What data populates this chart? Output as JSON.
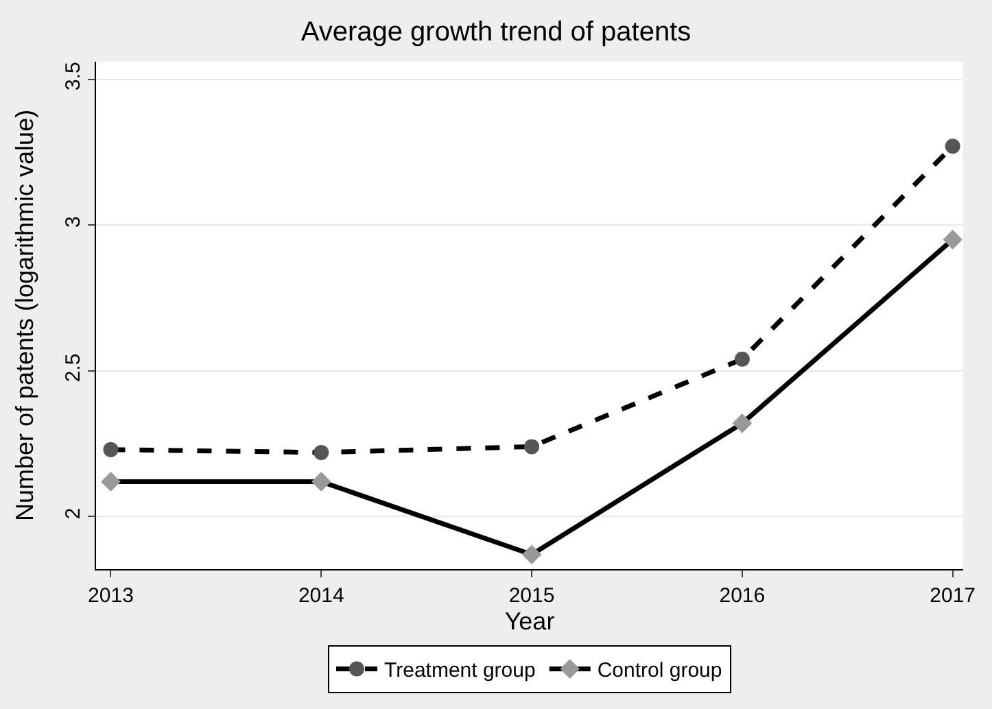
{
  "chart_data": {
    "type": "line",
    "title": "Average growth trend of patents",
    "xlabel": "Year",
    "ylabel": "Number of patents (logarithmic value)",
    "x": [
      2013,
      2014,
      2015,
      2016,
      2017
    ],
    "series": [
      {
        "name": "Treatment group",
        "color": "#000000",
        "colors": [
          "#555555",
          "#555555",
          "#555555",
          "#555555",
          "#555555"
        ],
        "marker": "circle",
        "line_style": "dashed",
        "values": [
          2.23,
          2.22,
          2.24,
          2.54,
          3.27
        ]
      },
      {
        "name": "Control group",
        "color": "#000000",
        "colors": [
          "#999999",
          "#999999",
          "#999999",
          "#999999",
          "#999999"
        ],
        "marker": "diamond",
        "line_style": "solid",
        "values": [
          2.12,
          2.12,
          1.87,
          2.32,
          2.95
        ]
      }
    ],
    "xlim": [
      2012.93,
      2017.05
    ],
    "xticks": [
      2013,
      2014,
      2015,
      2016,
      2017
    ],
    "ylim": [
      1.82,
      3.56
    ],
    "yticks": [
      2,
      2.5,
      3,
      3.5
    ],
    "grid": "y",
    "legend": "bottom"
  }
}
